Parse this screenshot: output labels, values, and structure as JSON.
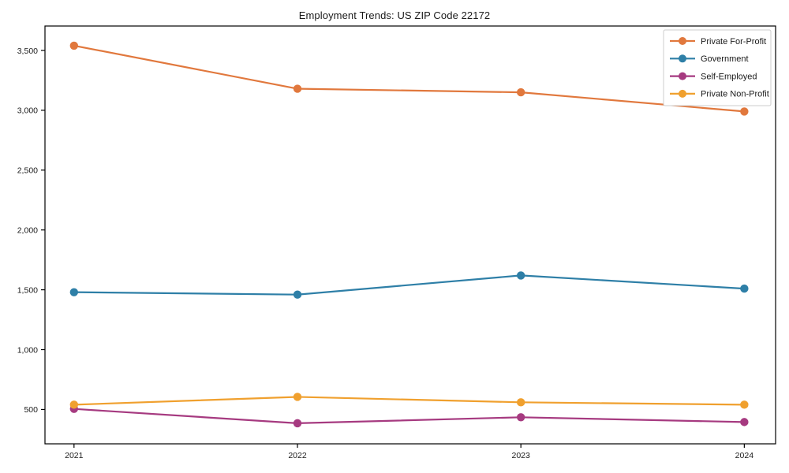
{
  "page": {
    "background": "#ffffff",
    "text_color": "#1a1a1a",
    "axis_color": "#000000",
    "legend_border_color": "#cccccc"
  },
  "chart_data": {
    "type": "line",
    "title": "Employment Trends: US ZIP Code 22172",
    "xlabel": "",
    "ylabel": "",
    "grid": false,
    "frame": true,
    "marker": "circle",
    "legend_position": "upper right",
    "x": [
      2021,
      2022,
      2023,
      2024
    ],
    "x_tick_labels": [
      "2021",
      "2022",
      "2023",
      "2024"
    ],
    "y_ticks": [
      500,
      1000,
      1500,
      2000,
      2500,
      3000,
      3500
    ],
    "y_tick_labels": [
      "500",
      "1,000",
      "1,500",
      "2,000",
      "2,500",
      "3,000",
      "3,500"
    ],
    "xlim": [
      2020.87,
      2024.14
    ],
    "ylim": [
      213,
      3704
    ],
    "series": [
      {
        "name": "Private For-Profit",
        "color": "#e1783d",
        "values": [
          3540,
          3180,
          3150,
          2990
        ]
      },
      {
        "name": "Government",
        "color": "#2e7fa7",
        "values": [
          1480,
          1460,
          1620,
          1510
        ]
      },
      {
        "name": "Self-Employed",
        "color": "#a63a80",
        "values": [
          505,
          385,
          435,
          395
        ]
      },
      {
        "name": "Private Non-Profit",
        "color": "#f0a02e",
        "values": [
          540,
          605,
          560,
          540
        ]
      }
    ]
  }
}
